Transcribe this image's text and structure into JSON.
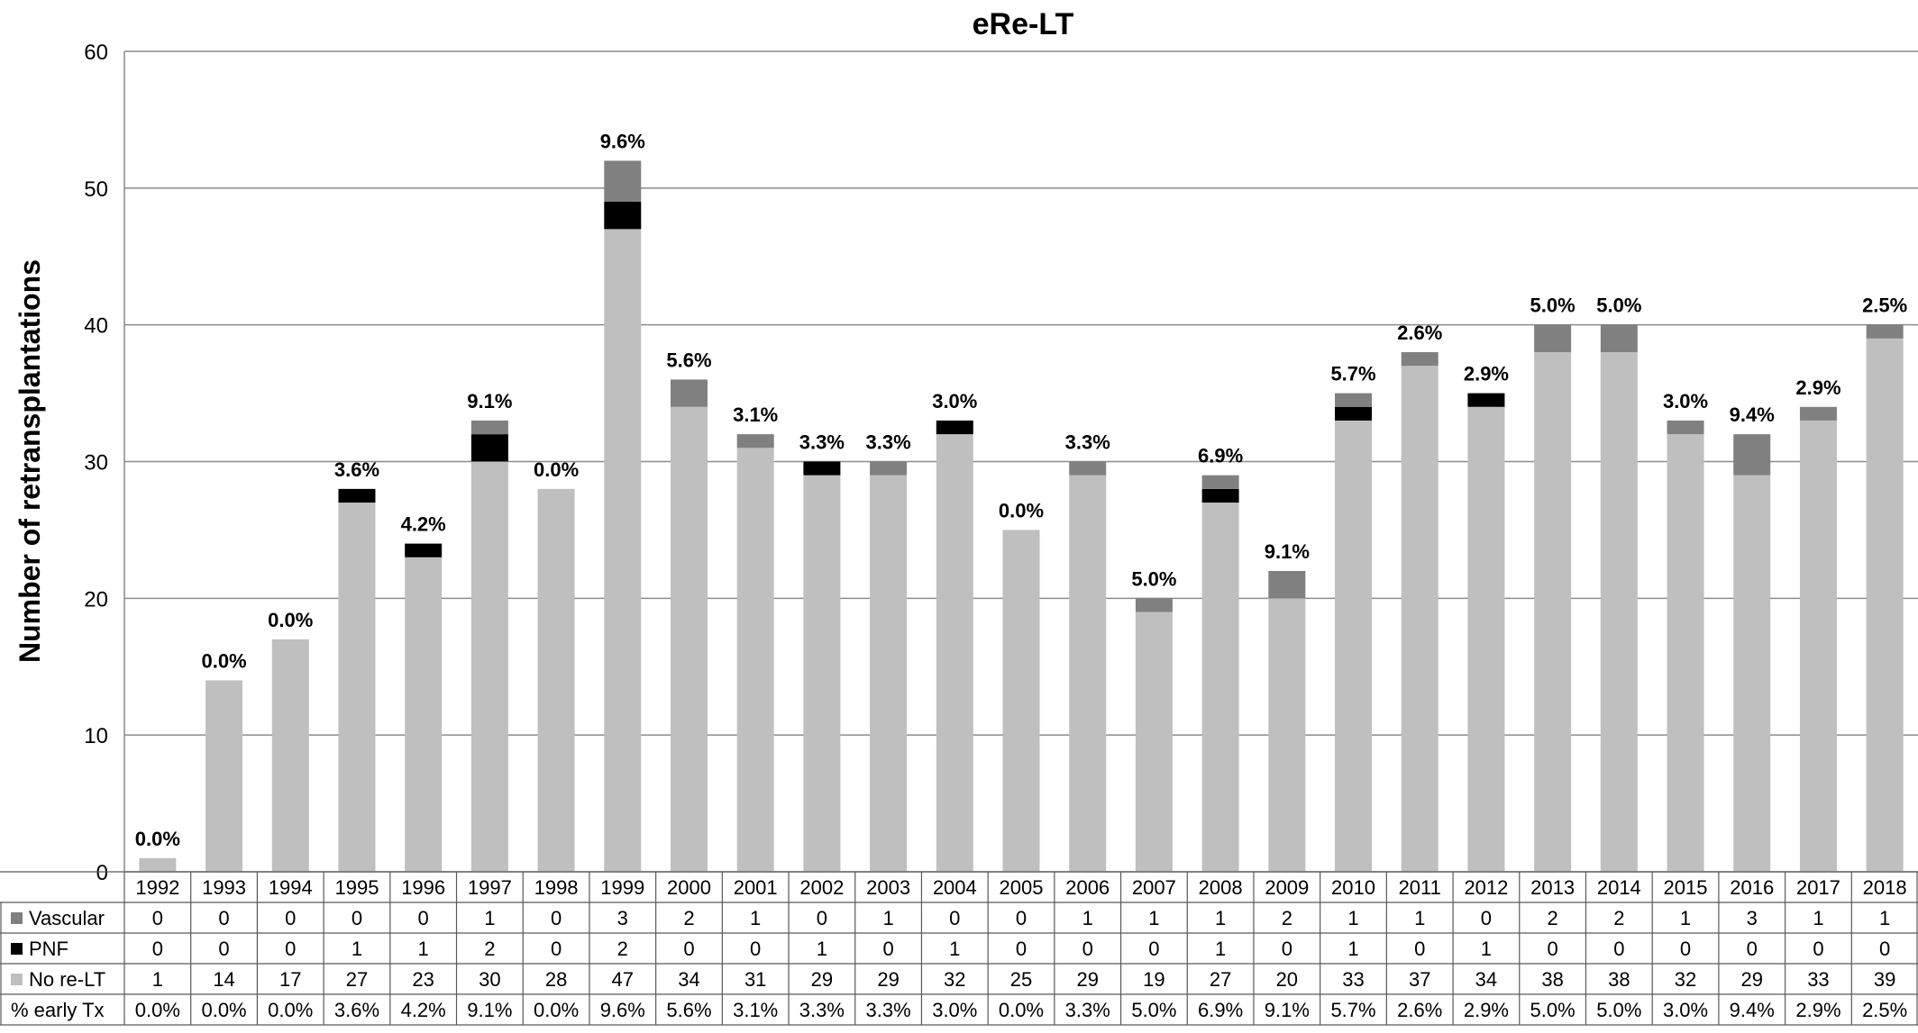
{
  "chart_data": {
    "type": "bar",
    "stacked": true,
    "title": "eRe-LT",
    "ylabel": "Number of retransplantations",
    "xlabel": "",
    "ylim": [
      0,
      60
    ],
    "yticks": [
      0,
      10,
      20,
      30,
      40,
      50,
      60
    ],
    "grid": true,
    "categories": [
      "1992",
      "1993",
      "1994",
      "1995",
      "1996",
      "1997",
      "1998",
      "1999",
      "2000",
      "2001",
      "2002",
      "2003",
      "2004",
      "2005",
      "2006",
      "2007",
      "2008",
      "2009",
      "2010",
      "2011",
      "2012",
      "2013",
      "2014",
      "2015",
      "2016",
      "2017",
      "2018"
    ],
    "series": [
      {
        "name": "No re-LT",
        "color": "#bfbfbf",
        "values": [
          1,
          14,
          17,
          27,
          23,
          30,
          28,
          47,
          34,
          31,
          29,
          29,
          32,
          25,
          29,
          19,
          27,
          20,
          33,
          37,
          34,
          38,
          38,
          32,
          29,
          33,
          39
        ]
      },
      {
        "name": "PNF",
        "color": "#000000",
        "values": [
          0,
          0,
          0,
          1,
          1,
          2,
          0,
          2,
          0,
          0,
          1,
          0,
          1,
          0,
          0,
          0,
          1,
          0,
          1,
          0,
          1,
          0,
          0,
          0,
          0,
          0,
          0
        ]
      },
      {
        "name": "Vascular",
        "color": "#808080",
        "values": [
          0,
          0,
          0,
          0,
          0,
          1,
          0,
          3,
          2,
          1,
          0,
          1,
          0,
          0,
          1,
          1,
          1,
          2,
          1,
          1,
          0,
          2,
          2,
          1,
          3,
          1,
          1
        ]
      }
    ],
    "bar_labels": [
      "0.0%",
      "0.0%",
      "0.0%",
      "3.6%",
      "4.2%",
      "9.1%",
      "0.0%",
      "9.6%",
      "5.6%",
      "3.1%",
      "3.3%",
      "3.3%",
      "3.0%",
      "0.0%",
      "3.3%",
      "5.0%",
      "6.9%",
      "9.1%",
      "5.7%",
      "2.6%",
      "2.9%",
      "5.0%",
      "5.0%",
      "3.0%",
      "9.4%",
      "2.9%",
      "2.5%"
    ],
    "table": {
      "rows": [
        {
          "label": "Vascular",
          "series": "Vascular",
          "color": "#808080",
          "values": [
            "0",
            "0",
            "0",
            "0",
            "0",
            "1",
            "0",
            "3",
            "2",
            "1",
            "0",
            "1",
            "0",
            "0",
            "1",
            "1",
            "1",
            "2",
            "1",
            "1",
            "0",
            "2",
            "2",
            "1",
            "3",
            "1",
            "1"
          ]
        },
        {
          "label": "PNF",
          "series": "PNF",
          "color": "#000000",
          "values": [
            "0",
            "0",
            "0",
            "1",
            "1",
            "2",
            "0",
            "2",
            "0",
            "0",
            "1",
            "0",
            "1",
            "0",
            "0",
            "0",
            "1",
            "0",
            "1",
            "0",
            "1",
            "0",
            "0",
            "0",
            "0",
            "0",
            "0"
          ]
        },
        {
          "label": "No re-LT",
          "series": "No re-LT",
          "color": "#bfbfbf",
          "values": [
            "1",
            "14",
            "17",
            "27",
            "23",
            "30",
            "28",
            "47",
            "34",
            "31",
            "29",
            "29",
            "32",
            "25",
            "29",
            "19",
            "27",
            "20",
            "33",
            "37",
            "34",
            "38",
            "38",
            "32",
            "29",
            "33",
            "39"
          ]
        },
        {
          "label": "% early Tx",
          "series": null,
          "color": null,
          "values": [
            "0.0%",
            "0.0%",
            "0.0%",
            "3.6%",
            "4.2%",
            "9.1%",
            "0.0%",
            "9.6%",
            "5.6%",
            "3.1%",
            "3.3%",
            "3.3%",
            "3.0%",
            "0.0%",
            "3.3%",
            "5.0%",
            "6.9%",
            "9.1%",
            "5.7%",
            "2.6%",
            "2.9%",
            "5.0%",
            "5.0%",
            "3.0%",
            "9.4%",
            "2.9%",
            "2.5%"
          ]
        }
      ]
    }
  }
}
